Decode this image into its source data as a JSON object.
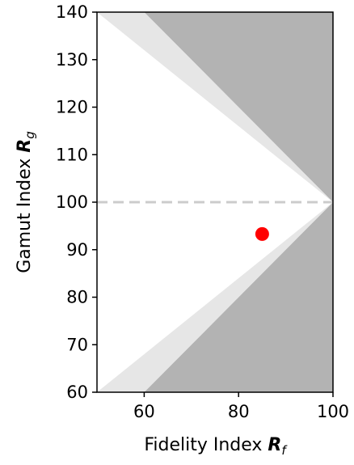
{
  "chart_data": {
    "type": "scatter",
    "xlabel": "Fidelity Index",
    "xlabel_symbol": "R",
    "xlabel_subscript": "f",
    "ylabel": "Gamut Index",
    "ylabel_symbol": "R",
    "ylabel_subscript": "g",
    "xlim": [
      50,
      100
    ],
    "ylim": [
      60,
      140
    ],
    "xticks": [
      60,
      80,
      100
    ],
    "yticks": [
      60,
      70,
      80,
      90,
      100,
      110,
      120,
      130,
      140
    ],
    "grid": false,
    "reference_line": {
      "y": 100,
      "style": "dashed",
      "color": "#cccccc"
    },
    "regions": [
      {
        "fill": "#b3b3b3",
        "points": [
          [
            60,
            140
          ],
          [
            100,
            140
          ],
          [
            100,
            60
          ],
          [
            60,
            60
          ],
          [
            100,
            100
          ]
        ]
      },
      {
        "fill": "#e6e6e6",
        "points": [
          [
            50,
            140
          ],
          [
            60,
            140
          ],
          [
            100,
            100
          ],
          [
            60,
            60
          ],
          [
            50,
            60
          ],
          [
            100,
            100
          ]
        ]
      }
    ],
    "points": [
      {
        "x": 85,
        "y": 93.3,
        "color": "#ff0000"
      }
    ]
  }
}
